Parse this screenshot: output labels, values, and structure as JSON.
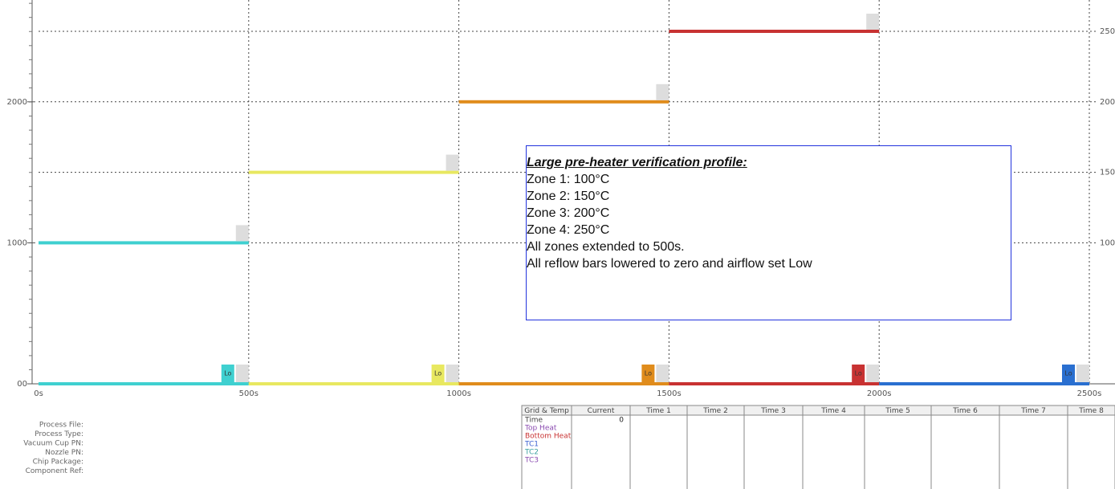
{
  "chart": {
    "xlim": [
      0,
      2500
    ],
    "ylim": [
      0,
      2500
    ],
    "x_ticks": [
      {
        "value": 0,
        "label": "0s"
      },
      {
        "value": 500,
        "label": "500s"
      },
      {
        "value": 1000,
        "label": "1000s"
      },
      {
        "value": 1500,
        "label": "1500s"
      },
      {
        "value": 2000,
        "label": "2000s"
      },
      {
        "value": 2500,
        "label": "2500s"
      }
    ],
    "y_left_ticks": [
      {
        "value": 0,
        "label": "00"
      },
      1000,
      2000
    ],
    "y_right_ticks": [
      {
        "value": 1000,
        "label": "100"
      },
      {
        "value": 1500,
        "label": "150"
      },
      {
        "value": 2000,
        "label": "200"
      },
      {
        "value": 2500,
        "label": "250"
      }
    ],
    "zones": [
      {
        "start": 0,
        "end": 500,
        "level": 1000,
        "color": "#3fd0d0"
      },
      {
        "start": 500,
        "end": 1000,
        "level": 1500,
        "color": "#e8e860"
      },
      {
        "start": 1000,
        "end": 1500,
        "level": 2000,
        "color": "#e08c1c"
      },
      {
        "start": 1500,
        "end": 2000,
        "level": 2500,
        "color": "#c83232"
      }
    ],
    "reflow_bars": [
      {
        "start": 0,
        "end": 500,
        "level": 0,
        "color": "#3fd0d0",
        "label": "Lo"
      },
      {
        "start": 500,
        "end": 1000,
        "level": 0,
        "color": "#e8e860",
        "label": "Lo"
      },
      {
        "start": 1000,
        "end": 1500,
        "level": 0,
        "color": "#e08c1c",
        "label": "Lo"
      },
      {
        "start": 1500,
        "end": 2000,
        "level": 0,
        "color": "#c83232",
        "label": "Lo"
      },
      {
        "start": 2000,
        "end": 2500,
        "level": 0,
        "color": "#2a6fd0",
        "label": "Lo"
      }
    ]
  },
  "note": {
    "title": "Large pre-heater verification profile:",
    "lines": [
      "Zone 1: 100°C",
      "Zone 2: 150°C",
      "Zone 3: 200°C",
      "Zone 4: 250°C",
      "All zones extended to 500s.",
      "All reflow bars lowered to zero and airflow set Low"
    ]
  },
  "info_labels": [
    "Process File:",
    "Process Type:",
    "Vacuum Cup PN:",
    "Nozzle PN:",
    "Chip Package:",
    "Component Ref:"
  ],
  "table": {
    "header": [
      "Grid & Temp",
      "Current",
      "Time 1",
      "Time 2",
      "Time 3",
      "Time 4",
      "Time 5",
      "Time 6",
      "Time 7",
      "Time 8"
    ],
    "rows": [
      [
        "Time",
        "0"
      ],
      [
        "Top Heat"
      ],
      [
        "Bottom Heat"
      ],
      [
        "TC1"
      ],
      [
        "TC2"
      ],
      [
        "TC3"
      ]
    ]
  }
}
